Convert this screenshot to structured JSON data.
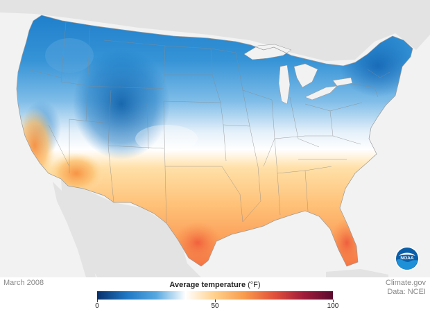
{
  "map": {
    "date_label": "March 2008",
    "credit_line1": "Climate.gov",
    "credit_line2": "Data: NCEI",
    "logo_text": "NOAA",
    "background_color": "#f2f2f2",
    "land_color": "#e3e3e3",
    "water_color": "#f2f2f2"
  },
  "legend": {
    "title_bold": "Average temperature",
    "title_unit": "(°F)",
    "ticks": [
      "0",
      "50",
      "100"
    ],
    "min": 0,
    "max": 100,
    "colors": [
      "#08306b",
      "#1f77c4",
      "#56a8e0",
      "#ffffff",
      "#ffd08a",
      "#f89b4c",
      "#e2513a",
      "#a11d3a",
      "#5a0a2e"
    ]
  }
}
